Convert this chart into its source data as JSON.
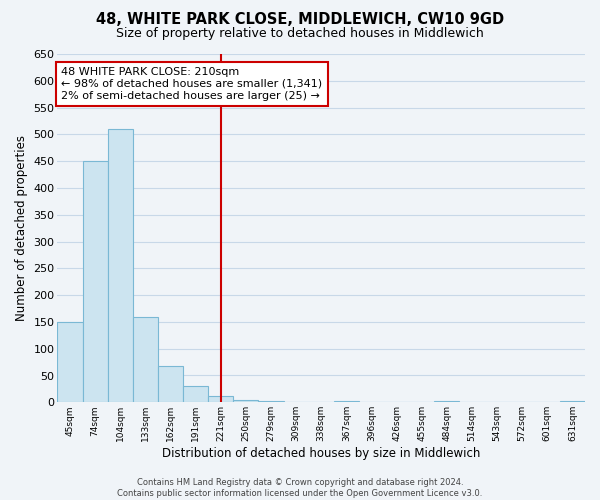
{
  "title": "48, WHITE PARK CLOSE, MIDDLEWICH, CW10 9GD",
  "subtitle": "Size of property relative to detached houses in Middlewich",
  "xlabel": "Distribution of detached houses by size in Middlewich",
  "ylabel": "Number of detached properties",
  "footer_line1": "Contains HM Land Registry data © Crown copyright and database right 2024.",
  "footer_line2": "Contains public sector information licensed under the Open Government Licence v3.0.",
  "bin_labels": [
    "45sqm",
    "74sqm",
    "104sqm",
    "133sqm",
    "162sqm",
    "191sqm",
    "221sqm",
    "250sqm",
    "279sqm",
    "309sqm",
    "338sqm",
    "367sqm",
    "396sqm",
    "426sqm",
    "455sqm",
    "484sqm",
    "514sqm",
    "543sqm",
    "572sqm",
    "601sqm",
    "631sqm"
  ],
  "bar_heights": [
    150,
    450,
    510,
    160,
    67,
    30,
    12,
    5,
    3,
    0,
    0,
    2,
    0,
    0,
    0,
    2,
    0,
    0,
    0,
    0,
    2
  ],
  "bar_color": "#cce4f0",
  "bar_edge_color": "#7ab8d4",
  "vline_x": 6.5,
  "vline_color": "#cc0000",
  "ylim": [
    0,
    650
  ],
  "yticks": [
    0,
    50,
    100,
    150,
    200,
    250,
    300,
    350,
    400,
    450,
    500,
    550,
    600,
    650
  ],
  "annotation_title": "48 WHITE PARK CLOSE: 210sqm",
  "annotation_line1": "← 98% of detached houses are smaller (1,341)",
  "annotation_line2": "2% of semi-detached houses are larger (25) →",
  "annotation_box_color": "#ffffff",
  "annotation_box_edge": "#cc0000",
  "background_color": "#f0f4f8",
  "grid_color": "#c8d8e8"
}
